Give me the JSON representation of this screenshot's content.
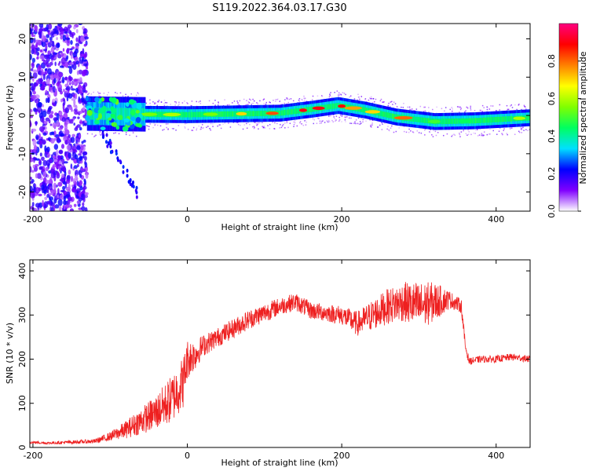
{
  "figure": {
    "title": "S119.2022.364.03.17.G30"
  },
  "chart_data": [
    {
      "type": "heatmap",
      "xlabel": "Height of straight line (km)",
      "ylabel": "Frequency (Hz)",
      "xlim": [
        -204,
        444
      ],
      "ylim": [
        -25,
        24
      ],
      "xticks": [
        -200,
        0,
        200,
        400
      ],
      "yticks": [
        -20,
        -10,
        0,
        10,
        20
      ],
      "colorbar": {
        "label": "Normalized spectral amplitude",
        "range": [
          0,
          1
        ],
        "ticks": [
          "0.0",
          "0.2",
          "0.4",
          "0.6",
          "0.8"
        ],
        "colormap": [
          "#ffffff",
          "#8000ff",
          "#0000ff",
          "#00e0ff",
          "#00ff60",
          "#80ff00",
          "#ffff00",
          "#ff8000",
          "#ff0000",
          "#ff0080"
        ]
      },
      "ridge": {
        "description_points": [
          {
            "x": -130,
            "y": 0.5
          },
          {
            "x": -60,
            "y": 0.3
          },
          {
            "x": 0,
            "y": 0.2
          },
          {
            "x": 60,
            "y": 0.4
          },
          {
            "x": 120,
            "y": 0.6
          },
          {
            "x": 160,
            "y": 1.6
          },
          {
            "x": 195,
            "y": 2.6
          },
          {
            "x": 230,
            "y": 1.4
          },
          {
            "x": 270,
            "y": -0.4
          },
          {
            "x": 320,
            "y": -1.6
          },
          {
            "x": 370,
            "y": -1.4
          },
          {
            "x": 444,
            "y": -0.6
          }
        ]
      }
    },
    {
      "type": "line",
      "xlabel": "Height of straight line (km)",
      "ylabel": "SNR (10 * v/v)",
      "xlim": [
        -204,
        444
      ],
      "ylim": [
        0,
        425
      ],
      "xticks": [
        -200,
        0,
        200,
        400
      ],
      "yticks": [
        0,
        100,
        200,
        300,
        400
      ],
      "color": "#ee2020",
      "series": [
        {
          "x": [
            -204,
            -180,
            -150,
            -120,
            -100,
            -80,
            -60,
            -40,
            -20,
            -5,
            0,
            10,
            20,
            40,
            60,
            80,
            100,
            120,
            140,
            160,
            180,
            200,
            220,
            240,
            260,
            280,
            300,
            320,
            340,
            355,
            360,
            365,
            380,
            400,
            420,
            444
          ],
          "values": [
            12,
            10,
            12,
            14,
            25,
            40,
            60,
            80,
            110,
            150,
            200,
            210,
            230,
            250,
            270,
            290,
            305,
            320,
            330,
            310,
            305,
            300,
            280,
            300,
            320,
            330,
            320,
            330,
            335,
            320,
            230,
            195,
            200,
            200,
            205,
            200
          ],
          "noise": [
            3,
            3,
            4,
            5,
            10,
            20,
            30,
            40,
            55,
            60,
            45,
            35,
            25,
            22,
            22,
            22,
            22,
            20,
            20,
            20,
            20,
            22,
            28,
            35,
            40,
            45,
            55,
            45,
            20,
            15,
            12,
            8,
            8,
            8,
            8,
            8
          ]
        }
      ]
    }
  ]
}
